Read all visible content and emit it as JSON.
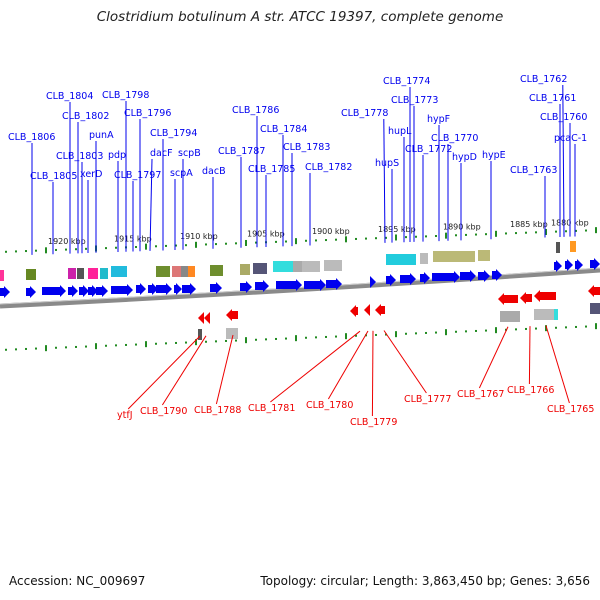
{
  "title": "Clostridium botulinum A str. ATCC 19397, complete genome",
  "footer": {
    "accession": "Accession: NC_009697",
    "topology": "Topology: circular; Length: 3,863,450 bp; Genes: 3,656"
  },
  "colors": {
    "blue_gene": "#0000ee",
    "red_gene": "#ee0000",
    "tick": "#228b22",
    "backbone": "#888888"
  },
  "scale_ticks": [
    "1920 kbp",
    "1915 kbp",
    "1910 kbp",
    "1905 kbp",
    "1900 kbp",
    "1895 kbp",
    "1890 kbp",
    "1885 kbp",
    "1880 kbp"
  ],
  "top_labels": [
    {
      "text": "CLB_1806"
    },
    {
      "text": "CLB_1805"
    },
    {
      "text": "CLB_1804"
    },
    {
      "text": "CLB_1802"
    },
    {
      "text": "CLB_1803"
    },
    {
      "text": "xerD"
    },
    {
      "text": "punA"
    },
    {
      "text": "pdp"
    },
    {
      "text": "CLB_1798"
    },
    {
      "text": "CLB_1797"
    },
    {
      "text": "CLB_1796"
    },
    {
      "text": "dacF"
    },
    {
      "text": "CLB_1794"
    },
    {
      "text": "scpA"
    },
    {
      "text": "scpB"
    },
    {
      "text": "dacB"
    },
    {
      "text": "CLB_1787"
    },
    {
      "text": "CLB_1786"
    },
    {
      "text": "CLB_1785"
    },
    {
      "text": "CLB_1784"
    },
    {
      "text": "CLB_1783"
    },
    {
      "text": "CLB_1782"
    },
    {
      "text": "CLB_1778"
    },
    {
      "text": "hupS"
    },
    {
      "text": "hupL"
    },
    {
      "text": "CLB_1774"
    },
    {
      "text": "CLB_1773"
    },
    {
      "text": "CLB_1772"
    },
    {
      "text": "hypF"
    },
    {
      "text": "CLB_1770"
    },
    {
      "text": "hypD"
    },
    {
      "text": "hypE"
    },
    {
      "text": "CLB_1763"
    },
    {
      "text": "CLB_1762"
    },
    {
      "text": "CLB_1761"
    },
    {
      "text": "CLB_1760"
    },
    {
      "text": "pcaC-1"
    }
  ],
  "bottom_labels": [
    {
      "text": "ytfJ"
    },
    {
      "text": "CLB_1790"
    },
    {
      "text": "CLB_1788"
    },
    {
      "text": "CLB_1781"
    },
    {
      "text": "CLB_1780"
    },
    {
      "text": "CLB_1779"
    },
    {
      "text": "CLB_1777"
    },
    {
      "text": "CLB_1767"
    },
    {
      "text": "CLB_1766"
    },
    {
      "text": "CLB_1765"
    }
  ]
}
